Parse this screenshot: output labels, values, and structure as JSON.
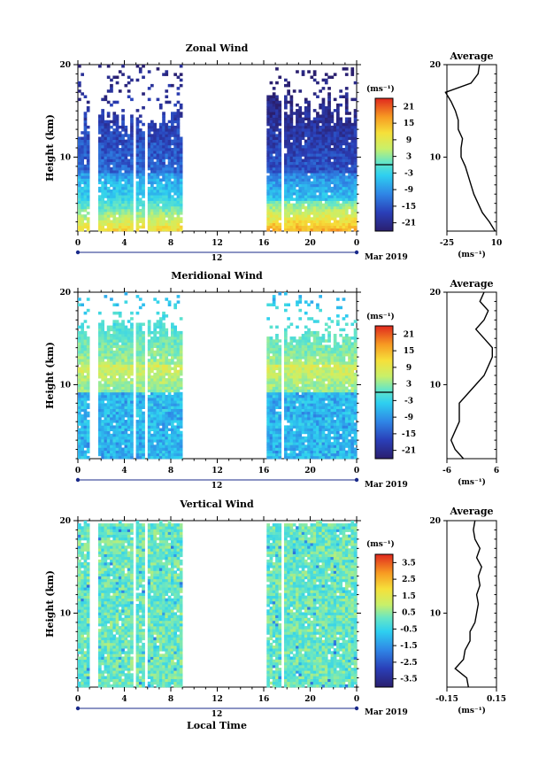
{
  "chart_data": [
    {
      "type": "heatmap",
      "title": "Zonal Wind",
      "ylabel": "Height (km)",
      "xlabel": "",
      "units": "(ms⁻¹)",
      "date_label": "12",
      "month_label": "Mar 2019",
      "x_ticks": [
        "0",
        "4",
        "8",
        "12",
        "16",
        "20",
        "0"
      ],
      "y_ticks": [
        "20",
        "10"
      ],
      "xlim": [
        0,
        24
      ],
      "ylim": [
        2,
        20
      ],
      "data_gaps_hours": [
        [
          1.0,
          1.7
        ],
        [
          4.7,
          4.9
        ],
        [
          5.7,
          6.0
        ],
        [
          8.8,
          16.2
        ],
        [
          17.5,
          17.7
        ]
      ],
      "colorbar_ticks": [
        "21",
        "15",
        "9",
        "3",
        "-3",
        "-9",
        "-15",
        "-21"
      ],
      "colorbar_range": [
        -24,
        24
      ],
      "zero_line_level": 0,
      "profile": {
        "title": "Average",
        "xlabel": "(ms⁻¹)",
        "x_ticks": [
          "-25",
          "10"
        ],
        "y_ticks": [
          "20",
          "10"
        ],
        "xlim": [
          -25,
          10
        ],
        "heights": [
          2,
          3,
          4,
          5,
          6,
          7,
          8,
          9,
          10,
          11,
          12,
          13,
          14,
          15,
          16,
          17,
          18,
          19,
          20
        ],
        "values": [
          9,
          5,
          0,
          -3,
          -6,
          -8,
          -10,
          -12,
          -15,
          -15,
          -14,
          -17,
          -17,
          -19,
          -22,
          -26,
          -8,
          -3,
          -2
        ]
      }
    },
    {
      "type": "heatmap",
      "title": "Meridional Wind",
      "ylabel": "Height (km)",
      "xlabel": "",
      "units": "(ms⁻¹)",
      "date_label": "12",
      "month_label": "Mar 2019",
      "x_ticks": [
        "0",
        "4",
        "8",
        "12",
        "16",
        "20",
        "0"
      ],
      "y_ticks": [
        "20",
        "10"
      ],
      "xlim": [
        0,
        24
      ],
      "ylim": [
        2,
        20
      ],
      "data_gaps_hours": [
        [
          1.0,
          1.7
        ],
        [
          4.7,
          4.9
        ],
        [
          5.7,
          6.0
        ],
        [
          8.8,
          16.2
        ],
        [
          17.5,
          17.7
        ]
      ],
      "colorbar_ticks": [
        "21",
        "15",
        "9",
        "3",
        "-3",
        "-9",
        "-15",
        "-21"
      ],
      "colorbar_range": [
        -24,
        24
      ],
      "zero_line_level": 0,
      "profile": {
        "title": "Average",
        "xlabel": "(ms⁻¹)",
        "x_ticks": [
          "-6",
          "6"
        ],
        "y_ticks": [
          "20",
          "10"
        ],
        "xlim": [
          -6,
          6
        ],
        "heights": [
          2,
          3,
          4,
          5,
          6,
          7,
          8,
          9,
          10,
          11,
          12,
          13,
          14,
          15,
          16,
          17,
          18,
          19,
          20
        ],
        "values": [
          -2,
          -4,
          -5,
          -4,
          -3,
          -3,
          -3,
          -1,
          1,
          3,
          4,
          5,
          5,
          3,
          1,
          3,
          4,
          2,
          3
        ]
      }
    },
    {
      "type": "heatmap",
      "title": "Vertical Wind",
      "ylabel": "Height (km)",
      "xlabel": "Local Time",
      "units": "(ms⁻¹)",
      "date_label": "12",
      "month_label": "Mar 2019",
      "x_ticks": [
        "0",
        "4",
        "8",
        "12",
        "16",
        "20",
        "0"
      ],
      "y_ticks": [
        "20",
        "10"
      ],
      "xlim": [
        0,
        24
      ],
      "ylim": [
        2,
        20
      ],
      "data_gaps_hours": [
        [
          1.0,
          1.7
        ],
        [
          4.7,
          4.9
        ],
        [
          5.7,
          6.0
        ],
        [
          8.8,
          16.2
        ],
        [
          17.5,
          17.7
        ]
      ],
      "colorbar_ticks": [
        "3.5",
        "2.5",
        "1.5",
        "0.5",
        "-0.5",
        "-1.5",
        "-2.5",
        "-3.5"
      ],
      "colorbar_range": [
        -4,
        4
      ],
      "zero_line_level": null,
      "profile": {
        "title": "Average",
        "xlabel": "(ms⁻¹)",
        "x_ticks": [
          "-0.15",
          "0.15"
        ],
        "y_ticks": [
          "20",
          "10"
        ],
        "xlim": [
          -0.15,
          0.15
        ],
        "heights": [
          2,
          3,
          4,
          5,
          6,
          7,
          8,
          9,
          10,
          11,
          12,
          13,
          14,
          15,
          16,
          17,
          18,
          19,
          20
        ],
        "values": [
          -0.02,
          -0.03,
          -0.1,
          -0.05,
          -0.04,
          -0.01,
          -0.01,
          0.02,
          0.03,
          0.04,
          0.03,
          0.05,
          0.04,
          0.06,
          0.03,
          0.05,
          0.02,
          0.01,
          0.02
        ]
      }
    }
  ]
}
